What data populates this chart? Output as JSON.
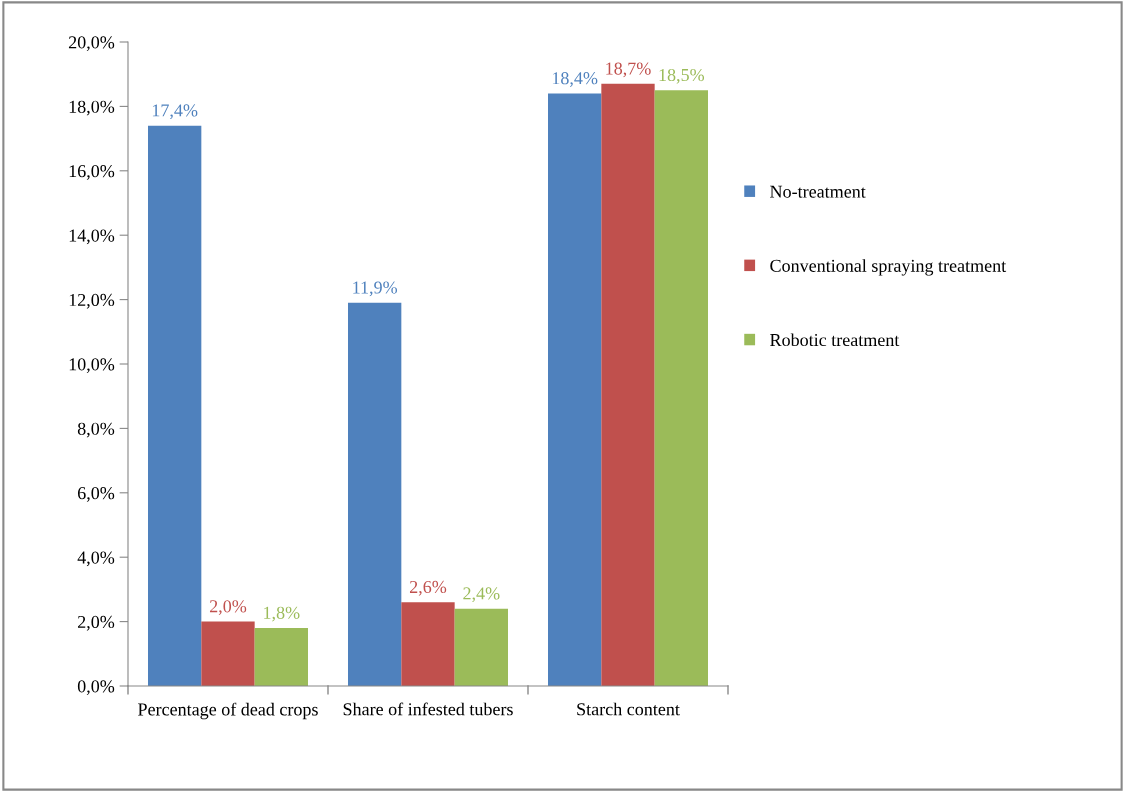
{
  "chart_data": {
    "type": "bar",
    "categories": [
      "Percentage of dead crops",
      "Share of infested tubers",
      "Starch content"
    ],
    "series": [
      {
        "name": "No-treatment",
        "color": "#4f81bd",
        "values": [
          17.4,
          11.9,
          18.4
        ],
        "value_labels": [
          "17,4%",
          "11,9%",
          "18,4%"
        ]
      },
      {
        "name": "Conventional spraying treatment",
        "color": "#c0504d",
        "values": [
          2.0,
          2.6,
          18.7
        ],
        "value_labels": [
          "2,0%",
          "2,6%",
          "18,7%"
        ]
      },
      {
        "name": "Robotic treatment",
        "color": "#9bbb59",
        "values": [
          1.8,
          2.4,
          18.5
        ],
        "value_labels": [
          "1,8%",
          "2,4%",
          "18,5%"
        ]
      }
    ],
    "ylim": [
      0,
      20
    ],
    "yticks": [
      {
        "value": 0,
        "label": "0,0%"
      },
      {
        "value": 2,
        "label": "2,0%"
      },
      {
        "value": 4,
        "label": "4,0%"
      },
      {
        "value": 6,
        "label": "6,0%"
      },
      {
        "value": 8,
        "label": "8,0%"
      },
      {
        "value": 10,
        "label": "10,0%"
      },
      {
        "value": 12,
        "label": "12,0%"
      },
      {
        "value": 14,
        "label": "14,0%"
      },
      {
        "value": 16,
        "label": "16,0%"
      },
      {
        "value": 18,
        "label": "18,0%"
      },
      {
        "value": 20,
        "label": "20,0%"
      }
    ],
    "grid": false,
    "legend": "right"
  }
}
